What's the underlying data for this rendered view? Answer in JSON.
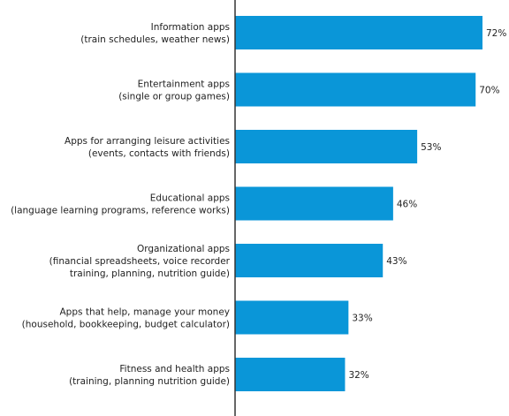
{
  "chart_data": {
    "type": "bar",
    "orientation": "horizontal",
    "categories": [
      [
        "Information apps",
        "(train schedules, weather news)"
      ],
      [
        "Entertainment apps",
        "(single or group games)"
      ],
      [
        "Apps for arranging leisure activities",
        "(events, contacts with friends)"
      ],
      [
        "Educational apps",
        "(language learning programs, reference works)"
      ],
      [
        "Organizational apps",
        "(financial spreadsheets, voice recorder",
        "training, planning, nutrition guide)"
      ],
      [
        "Apps that help, manage your money",
        "(household, bookkeeping, budget calculator)"
      ],
      [
        "Fitness and health apps",
        "(training, planning nutrition guide)"
      ]
    ],
    "values": [
      72,
      70,
      53,
      46,
      43,
      33,
      32
    ],
    "value_labels": [
      "72%",
      "70%",
      "53%",
      "46%",
      "43%",
      "33%",
      "32%"
    ],
    "xlim": [
      0,
      72
    ],
    "grid": false,
    "bar_color": "#0a96d8",
    "axis_color": "#333333"
  }
}
